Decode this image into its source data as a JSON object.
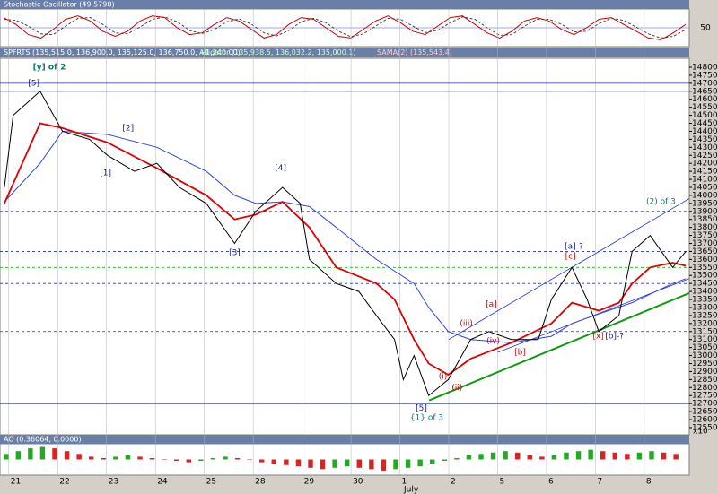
{
  "chart_data": [
    {
      "type": "line",
      "title": "Stochastic Oscillator (49.5798)",
      "ylim": [
        0,
        100
      ],
      "yticks": [
        50
      ],
      "series": [
        {
          "color": "#cc0000",
          "values": [
            80,
            60,
            30,
            20,
            45,
            75,
            85,
            70,
            40,
            25,
            40,
            70,
            85,
            80,
            50,
            30,
            35,
            60,
            80,
            70,
            45,
            20,
            30,
            60,
            80,
            75,
            50,
            25,
            20,
            45,
            70,
            85,
            65,
            40,
            30,
            55,
            80,
            85,
            60,
            35,
            20,
            40,
            70,
            80,
            70,
            45,
            30,
            50,
            75,
            80,
            60,
            40,
            20,
            15,
            35,
            60
          ]
        },
        {
          "color": "#444444",
          "dashed": true,
          "values": [
            75,
            72,
            55,
            32,
            30,
            55,
            78,
            80,
            60,
            35,
            32,
            52,
            75,
            82,
            68,
            42,
            33,
            45,
            68,
            76,
            60,
            35,
            26,
            42,
            68,
            78,
            65,
            40,
            24,
            32,
            55,
            78,
            75,
            55,
            36,
            42,
            65,
            82,
            75,
            50,
            28,
            30,
            55,
            75,
            75,
            60,
            38,
            40,
            62,
            78,
            72,
            52,
            32,
            20,
            25,
            45
          ]
        }
      ],
      "grid": true
    },
    {
      "type": "ohlc-line",
      "title": "SPFRTS (135,515.0, 136,900.0, 135,125.0, 136,750.0, +1,240.00)",
      "indicators": [
        "Alligator (135,938.5, 136,032.2, 135,000.1)",
        "SAMA(2) (135,543.4)"
      ],
      "axis_unit": "x10",
      "ylim": [
        12505,
        14856
      ],
      "xlim": [
        -0.18,
        13.92
      ],
      "yticks": [
        12550,
        12600,
        12650,
        12700,
        12750,
        12800,
        12850,
        12900,
        12950,
        13000,
        13050,
        13100,
        13150,
        13200,
        13250,
        13300,
        13350,
        13400,
        13450,
        13500,
        13550,
        13600,
        13650,
        13700,
        13750,
        13800,
        13850,
        13900,
        13950,
        14000,
        14050,
        14100,
        14150,
        14200,
        14250,
        14300,
        14350,
        14400,
        14450,
        14500,
        14550,
        14600,
        14650,
        14700,
        14750,
        14800
      ],
      "xticks": [
        {
          "value": 0,
          "label": "21"
        },
        {
          "value": 1,
          "label": "22"
        },
        {
          "value": 2,
          "label": "23"
        },
        {
          "value": 3,
          "label": "24"
        },
        {
          "value": 4,
          "label": "25"
        },
        {
          "value": 5,
          "label": "28"
        },
        {
          "value": 6,
          "label": "29"
        },
        {
          "value": 7,
          "label": "30"
        },
        {
          "value": 8,
          "label": "1"
        },
        {
          "value": 9,
          "label": "2"
        },
        {
          "value": 10,
          "label": "5"
        },
        {
          "value": 11,
          "label": "6"
        },
        {
          "value": 12,
          "label": "7"
        },
        {
          "value": 13,
          "label": "8"
        }
      ],
      "month_label": "July",
      "series": [
        {
          "color": "#000000",
          "x": [
            -0.09,
            0.09,
            0.64,
            1.1,
            1.65,
            2.02,
            2.57,
            3.03,
            3.49,
            4.04,
            4.62,
            5.05,
            5.6,
            5.96,
            6.15,
            6.7,
            7.16,
            7.52,
            7.89,
            8.07,
            8.29,
            8.59,
            8.99,
            9.45,
            9.82,
            10.28,
            10.83,
            11.1,
            11.52,
            11.83,
            12.07,
            12.48,
            12.75,
            13.12,
            13.58,
            13.85
          ],
          "values": [
            14050,
            14500,
            14650,
            14400,
            14350,
            14250,
            14150,
            14200,
            14050,
            13950,
            13700,
            13900,
            14050,
            13950,
            13600,
            13450,
            13400,
            13250,
            13100,
            12850,
            13000,
            12750,
            12850,
            13100,
            13150,
            13100,
            13100,
            13350,
            13550,
            13350,
            13150,
            13250,
            13650,
            13750,
            13550,
            13650
          ]
        },
        {
          "color": "#e00000",
          "x": [
            -0.09,
            0.64,
            1.1,
            2.02,
            3.03,
            4.04,
            4.62,
            5.05,
            5.6,
            6.15,
            6.7,
            7.52,
            7.89,
            8.29,
            8.59,
            8.99,
            9.45,
            10.28,
            11.1,
            11.52,
            12.07,
            12.48,
            12.75,
            13.12,
            13.58,
            13.85
          ],
          "values": [
            13950,
            14450,
            14420,
            14330,
            14170,
            14000,
            13850,
            13880,
            13960,
            13800,
            13550,
            13450,
            13350,
            13100,
            12950,
            12880,
            12980,
            13080,
            13200,
            13330,
            13280,
            13330,
            13450,
            13550,
            13580,
            13560
          ]
        },
        {
          "color": "#3344dd",
          "x": [
            -0.09,
            0.64,
            1.1,
            2.02,
            3.03,
            4.04,
            4.62,
            5.05,
            5.6,
            6.15,
            6.7,
            7.52,
            8.29,
            8.59,
            8.99,
            9.45,
            10.28,
            11.1,
            11.52,
            12.07,
            12.75,
            13.58,
            13.85
          ],
          "values": [
            13960,
            14200,
            14400,
            14380,
            14300,
            14150,
            14000,
            13950,
            13960,
            13930,
            13800,
            13600,
            13450,
            13300,
            13150,
            13100,
            13080,
            13120,
            13200,
            13260,
            13330,
            13450,
            13480
          ]
        }
      ],
      "levels": [
        {
          "value": 14700,
          "color": "#2233aa",
          "dashed": false
        },
        {
          "value": 14650,
          "color": "#2233aa",
          "dashed": false
        },
        {
          "value": 12700,
          "color": "#2233aa",
          "dashed": false
        },
        {
          "value": 13900,
          "color": "#2233aa",
          "dashed": true
        },
        {
          "value": 13650,
          "color": "#2233aa",
          "dashed": true
        },
        {
          "value": 13450,
          "color": "#2233aa",
          "dashed": true
        },
        {
          "value": 13150,
          "color": "#2233aa",
          "dashed": true
        },
        {
          "value": 13550,
          "color": "#22aa22",
          "dashed": true
        }
      ],
      "trendlines": [
        {
          "color": "#119911",
          "x": [
            8.6,
            13.92
          ],
          "values": [
            12720,
            13390
          ]
        },
        {
          "color": "#2233dd",
          "x": [
            9.0,
            13.92
          ],
          "values": [
            13100,
            13980
          ]
        },
        {
          "color": "#2233dd",
          "x": [
            10.0,
            13.92
          ],
          "values": [
            13020,
            13480
          ]
        }
      ],
      "annotations": [
        {
          "text": "[y] of 2",
          "x": 0.83,
          "y": 14800,
          "color": "#117777"
        },
        {
          "text": "[5]",
          "x": 0.51,
          "y": 14700,
          "color": "#1a1a80"
        },
        {
          "text": "[2]",
          "x": 2.44,
          "y": 14420,
          "color": "#1a1a80"
        },
        {
          "text": "[1]",
          "x": 1.98,
          "y": 14140,
          "color": "#1a1a80"
        },
        {
          "text": "[4]",
          "x": 5.56,
          "y": 14170,
          "color": "#1a1a80"
        },
        {
          "text": "[3]",
          "x": 4.62,
          "y": 13640,
          "color": "#1a1a80"
        },
        {
          "text": "[5]",
          "x": 8.44,
          "y": 12670,
          "color": "#1a1a80"
        },
        {
          "text": "{1} of 3",
          "x": 8.55,
          "y": 12610,
          "color": "#117777"
        },
        {
          "text": "(i)",
          "x": 8.88,
          "y": 12870,
          "color": "#cc0000"
        },
        {
          "text": "(ii)",
          "x": 9.17,
          "y": 12800,
          "color": "#cc0000"
        },
        {
          "text": "(iii)",
          "x": 9.36,
          "y": 13200,
          "color": "#cc0000"
        },
        {
          "text": "(iv)",
          "x": 9.91,
          "y": 13090,
          "color": "#cc0000"
        },
        {
          "text": "[a]",
          "x": 9.87,
          "y": 13320,
          "color": "#cc0000"
        },
        {
          "text": "[b]",
          "x": 10.46,
          "y": 13020,
          "color": "#cc0000"
        },
        {
          "text": "[c]",
          "x": 11.49,
          "y": 13620,
          "color": "#cc0000"
        },
        {
          "text": "[a]-?",
          "x": 11.56,
          "y": 13680,
          "color": "#1a1a80"
        },
        {
          "text": "[x]",
          "x": 12.06,
          "y": 13120,
          "color": "#cc0000"
        },
        {
          "text": "[b]-?",
          "x": 12.39,
          "y": 13120,
          "color": "#1a1a80"
        },
        {
          "text": "(2) of 3",
          "x": 13.34,
          "y": 13960,
          "color": "#117777"
        }
      ]
    },
    {
      "type": "histogram-ao",
      "title": "AO (0.36064, 0.0000)",
      "ylim": [
        -1,
        1
      ],
      "values": [
        0.4,
        0.6,
        0.8,
        0.9,
        0.8,
        0.6,
        0.4,
        0.2,
        0.1,
        0.2,
        0.3,
        0.2,
        0.1,
        0,
        -0.1,
        -0.2,
        -0.1,
        0.1,
        0.2,
        0.1,
        0,
        -0.2,
        -0.3,
        -0.4,
        -0.5,
        -0.6,
        -0.7,
        -0.6,
        -0.5,
        -0.6,
        -0.7,
        -0.8,
        -0.7,
        -0.6,
        -0.5,
        -0.3,
        -0.1,
        0.1,
        0.3,
        0.4,
        0.5,
        0.6,
        0.5,
        0.3,
        0.2,
        0.3,
        0.5,
        0.6,
        0.7,
        0.6,
        0.5,
        0.4,
        0.5,
        0.6,
        0.5,
        0.4
      ],
      "up_color": "#22aa22",
      "down_color": "#dd2222"
    }
  ]
}
